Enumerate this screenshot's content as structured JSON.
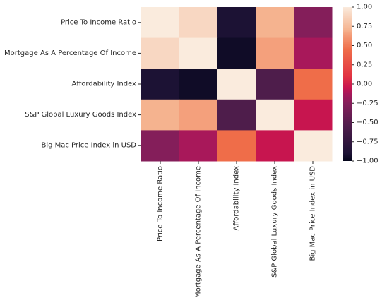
{
  "chart_data": {
    "type": "heatmap",
    "title": "",
    "xlabel": "",
    "ylabel": "",
    "rows": [
      "Price To Income Ratio",
      "Mortgage As A Percentage Of Income",
      "Affordability Index",
      "S&P Global Luxury Goods Index",
      "Big Mac Price Index in USD"
    ],
    "columns": [
      "Price To Income Ratio",
      "Mortgage As A Percentage Of Income",
      "Affordability Index",
      "S&P Global Luxury Goods Index",
      "Big Mac Price Index in USD"
    ],
    "values": [
      [
        1.0,
        0.9,
        -0.9,
        0.7,
        -0.25
      ],
      [
        0.9,
        1.0,
        -0.95,
        0.65,
        -0.12
      ],
      [
        -0.9,
        -0.95,
        1.0,
        -0.55,
        0.45
      ],
      [
        0.7,
        0.65,
        -0.55,
        1.0,
        -0.05
      ],
      [
        -0.25,
        -0.12,
        0.45,
        -0.05,
        1.0
      ]
    ],
    "colormap": "rocket",
    "colorbar": {
      "vmin": -1.0,
      "vmax": 1.0,
      "ticks": [
        1.0,
        0.75,
        0.5,
        0.25,
        0.0,
        -0.25,
        -0.5,
        -0.75,
        -1.0
      ],
      "tick_labels": [
        "1.00",
        "0.75",
        "0.50",
        "0.25",
        "0.00",
        "−0.25",
        "−0.50",
        "−0.75",
        "−1.00"
      ]
    },
    "colormap_stops": [
      {
        "v": -1.0,
        "color": "#03051a"
      },
      {
        "v": -0.9,
        "color": "#1c1234"
      },
      {
        "v": -0.55,
        "color": "#4e1d4b"
      },
      {
        "v": -0.25,
        "color": "#841e5a"
      },
      {
        "v": -0.12,
        "color": "#a8185a"
      },
      {
        "v": -0.05,
        "color": "#c7154f"
      },
      {
        "v": 0.1,
        "color": "#e13342"
      },
      {
        "v": 0.45,
        "color": "#ef6d49"
      },
      {
        "v": 0.65,
        "color": "#f4a07c"
      },
      {
        "v": 0.7,
        "color": "#f5b38f"
      },
      {
        "v": 0.9,
        "color": "#f8d7c2"
      },
      {
        "v": 1.0,
        "color": "#faebdd"
      }
    ]
  }
}
